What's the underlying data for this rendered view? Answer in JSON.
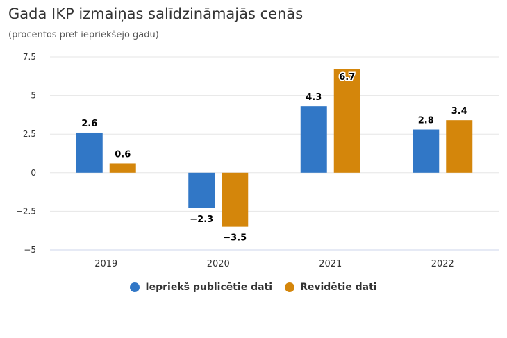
{
  "title": "Gada IKP izmaiņas salīdzināmajās cenās",
  "subtitle": "(procentos pret iepriekšējo gadu)",
  "chart_data": {
    "type": "bar",
    "categories": [
      "2019",
      "2020",
      "2021",
      "2022"
    ],
    "series": [
      {
        "name": "Iepriekš publicētie dati",
        "color": "#3177c6",
        "values": [
          2.6,
          -2.3,
          4.3,
          2.8
        ]
      },
      {
        "name": "Revidētie dati",
        "color": "#d4860b",
        "values": [
          0.6,
          -3.5,
          6.7,
          3.4
        ]
      }
    ],
    "ylim": [
      -5,
      7.5
    ],
    "yticks": [
      7.5,
      5,
      2.5,
      0,
      -2.5,
      -5
    ],
    "ytick_labels": [
      "7.5",
      "5",
      "2.5",
      "0",
      "−2.5",
      "−5"
    ],
    "data_labels": [
      [
        "2.6",
        "−2.3",
        "4.3",
        "2.8"
      ],
      [
        "0.6",
        "−3.5",
        "6.7",
        "3.4"
      ]
    ],
    "grid": true,
    "legend_position": "bottom"
  }
}
